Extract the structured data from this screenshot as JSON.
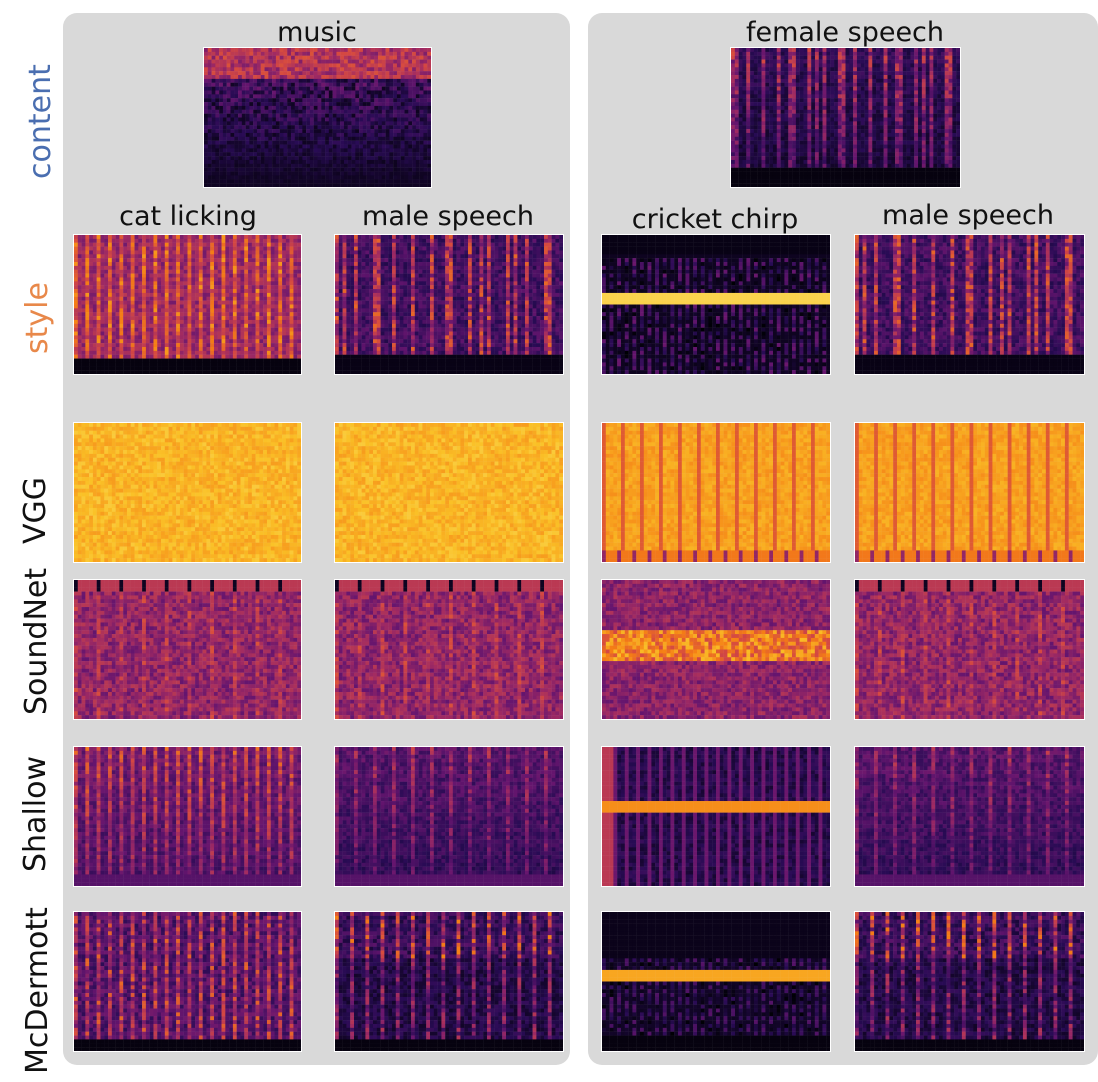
{
  "row_labels": {
    "content": "content",
    "style": "style",
    "vgg": "VGG",
    "soundnet": "SoundNet",
    "shallow": "Shallow",
    "mcdermott": "McDermott"
  },
  "colors": {
    "content_label": "#4a6eb0",
    "style_label": "#e8884a",
    "panel_bg": "#d9d9d9"
  },
  "left_panel": {
    "content_title": "music",
    "style_titles": [
      "cat licking",
      "male speech"
    ]
  },
  "right_panel": {
    "content_title": "female speech",
    "style_titles": [
      "cricket chirp",
      "male speech"
    ]
  }
}
